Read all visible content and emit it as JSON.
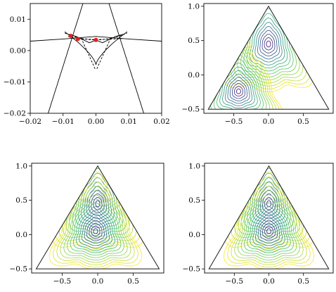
{
  "chart_data": [
    {
      "type": "line",
      "panel": "top-left",
      "xlim": [
        -0.02,
        0.02
      ],
      "ylim": [
        -0.02,
        0.015
      ],
      "xticks": [
        -0.02,
        -0.01,
        0.0,
        0.01,
        0.02
      ],
      "yticks": [
        -0.02,
        -0.01,
        0.0,
        0.01
      ],
      "xtick_labels": [
        "−0.02",
        "−0.01",
        "0.00",
        "0.01",
        "0.02"
      ],
      "ytick_labels": [
        "−0.02",
        "−0.01",
        "0.00",
        "0.01"
      ],
      "grid": false,
      "series": [
        {
          "style": "solid",
          "x": [
            -0.02,
            -0.01,
            0.0,
            0.01,
            0.02
          ],
          "y": [
            0.003,
            0.0037,
            0.0045,
            0.0037,
            0.003
          ]
        },
        {
          "style": "dashed",
          "x": [
            -0.0085,
            -0.005,
            0.0,
            0.008
          ],
          "y": [
            0.0045,
            0.0038,
            0.0035,
            0.0038
          ]
        },
        {
          "style": "solid",
          "x": [
            -0.0083,
            -0.006,
            -0.002,
            0.0,
            0.002,
            0.006,
            0.0083
          ],
          "y": [
            0.0052,
            0.0045,
            0.0025,
            0.0033,
            0.0025,
            0.0045,
            0.0052
          ]
        }
      ],
      "points": {
        "color": "#e02020",
        "x": [
          -0.0077,
          -0.0055,
          0.0
        ],
        "y": [
          0.0047,
          0.0037,
          0.0034
        ]
      }
    },
    {
      "type": "contour",
      "panel": "top-right",
      "xlim": [
        -0.93,
        0.93
      ],
      "ylim": [
        -0.56,
        1.04
      ],
      "xticks": [
        -0.5,
        0.0,
        0.5
      ],
      "yticks": [
        -0.5,
        0.0,
        0.5,
        1.0
      ],
      "xtick_labels": [
        "−0.5",
        "0.0",
        "0.5"
      ],
      "ytick_labels": [
        "−0.5",
        "0.0",
        "0.5",
        "1.0"
      ],
      "domain": "equilateral triangle",
      "triangle": [
        [
          -0.866,
          -0.5
        ],
        [
          0.866,
          -0.5
        ],
        [
          0.0,
          1.0
        ]
      ],
      "minima": [
        [
          0.0,
          0.45
        ],
        [
          -0.43,
          -0.24
        ]
      ],
      "colormap": [
        "#3b0f70",
        "#31688e",
        "#35b779",
        "#90d743",
        "#fde725"
      ]
    },
    {
      "type": "contour",
      "panel": "bottom-left",
      "xlim": [
        -0.93,
        0.93
      ],
      "ylim": [
        -0.56,
        1.04
      ],
      "xticks": [
        -0.5,
        0.0,
        0.5
      ],
      "yticks": [
        -0.5,
        0.0,
        0.5,
        1.0
      ],
      "xtick_labels": [
        "−0.5",
        "0.0",
        "0.5"
      ],
      "ytick_labels": [
        "−0.5",
        "0.0",
        "0.5",
        "1.0"
      ],
      "domain": "equilateral triangle",
      "triangle": [
        [
          -0.866,
          -0.5
        ],
        [
          0.866,
          -0.5
        ],
        [
          0.0,
          1.0
        ]
      ],
      "minima": [
        [
          0.0,
          0.45
        ],
        [
          -0.03,
          0.05
        ]
      ],
      "colormap": [
        "#3b0f70",
        "#31688e",
        "#35b779",
        "#90d743",
        "#fde725"
      ]
    },
    {
      "type": "contour",
      "panel": "bottom-right",
      "xlim": [
        -0.93,
        0.93
      ],
      "ylim": [
        -0.56,
        1.04
      ],
      "xticks": [
        -0.5,
        0.0,
        0.5
      ],
      "yticks": [
        -0.5,
        0.0,
        0.5,
        1.0
      ],
      "xtick_labels": [
        "−0.5",
        "0.0",
        "0.5"
      ],
      "ytick_labels": [
        "−0.5",
        "0.0",
        "0.5",
        "1.0"
      ],
      "domain": "equilateral triangle",
      "triangle": [
        [
          -0.866,
          -0.5
        ],
        [
          0.866,
          -0.5
        ],
        [
          0.0,
          1.0
        ]
      ],
      "minima": [
        [
          0.0,
          0.45
        ],
        [
          0.0,
          0.05
        ]
      ],
      "colormap": [
        "#3b0f70",
        "#31688e",
        "#35b779",
        "#90d743",
        "#fde725"
      ]
    }
  ]
}
